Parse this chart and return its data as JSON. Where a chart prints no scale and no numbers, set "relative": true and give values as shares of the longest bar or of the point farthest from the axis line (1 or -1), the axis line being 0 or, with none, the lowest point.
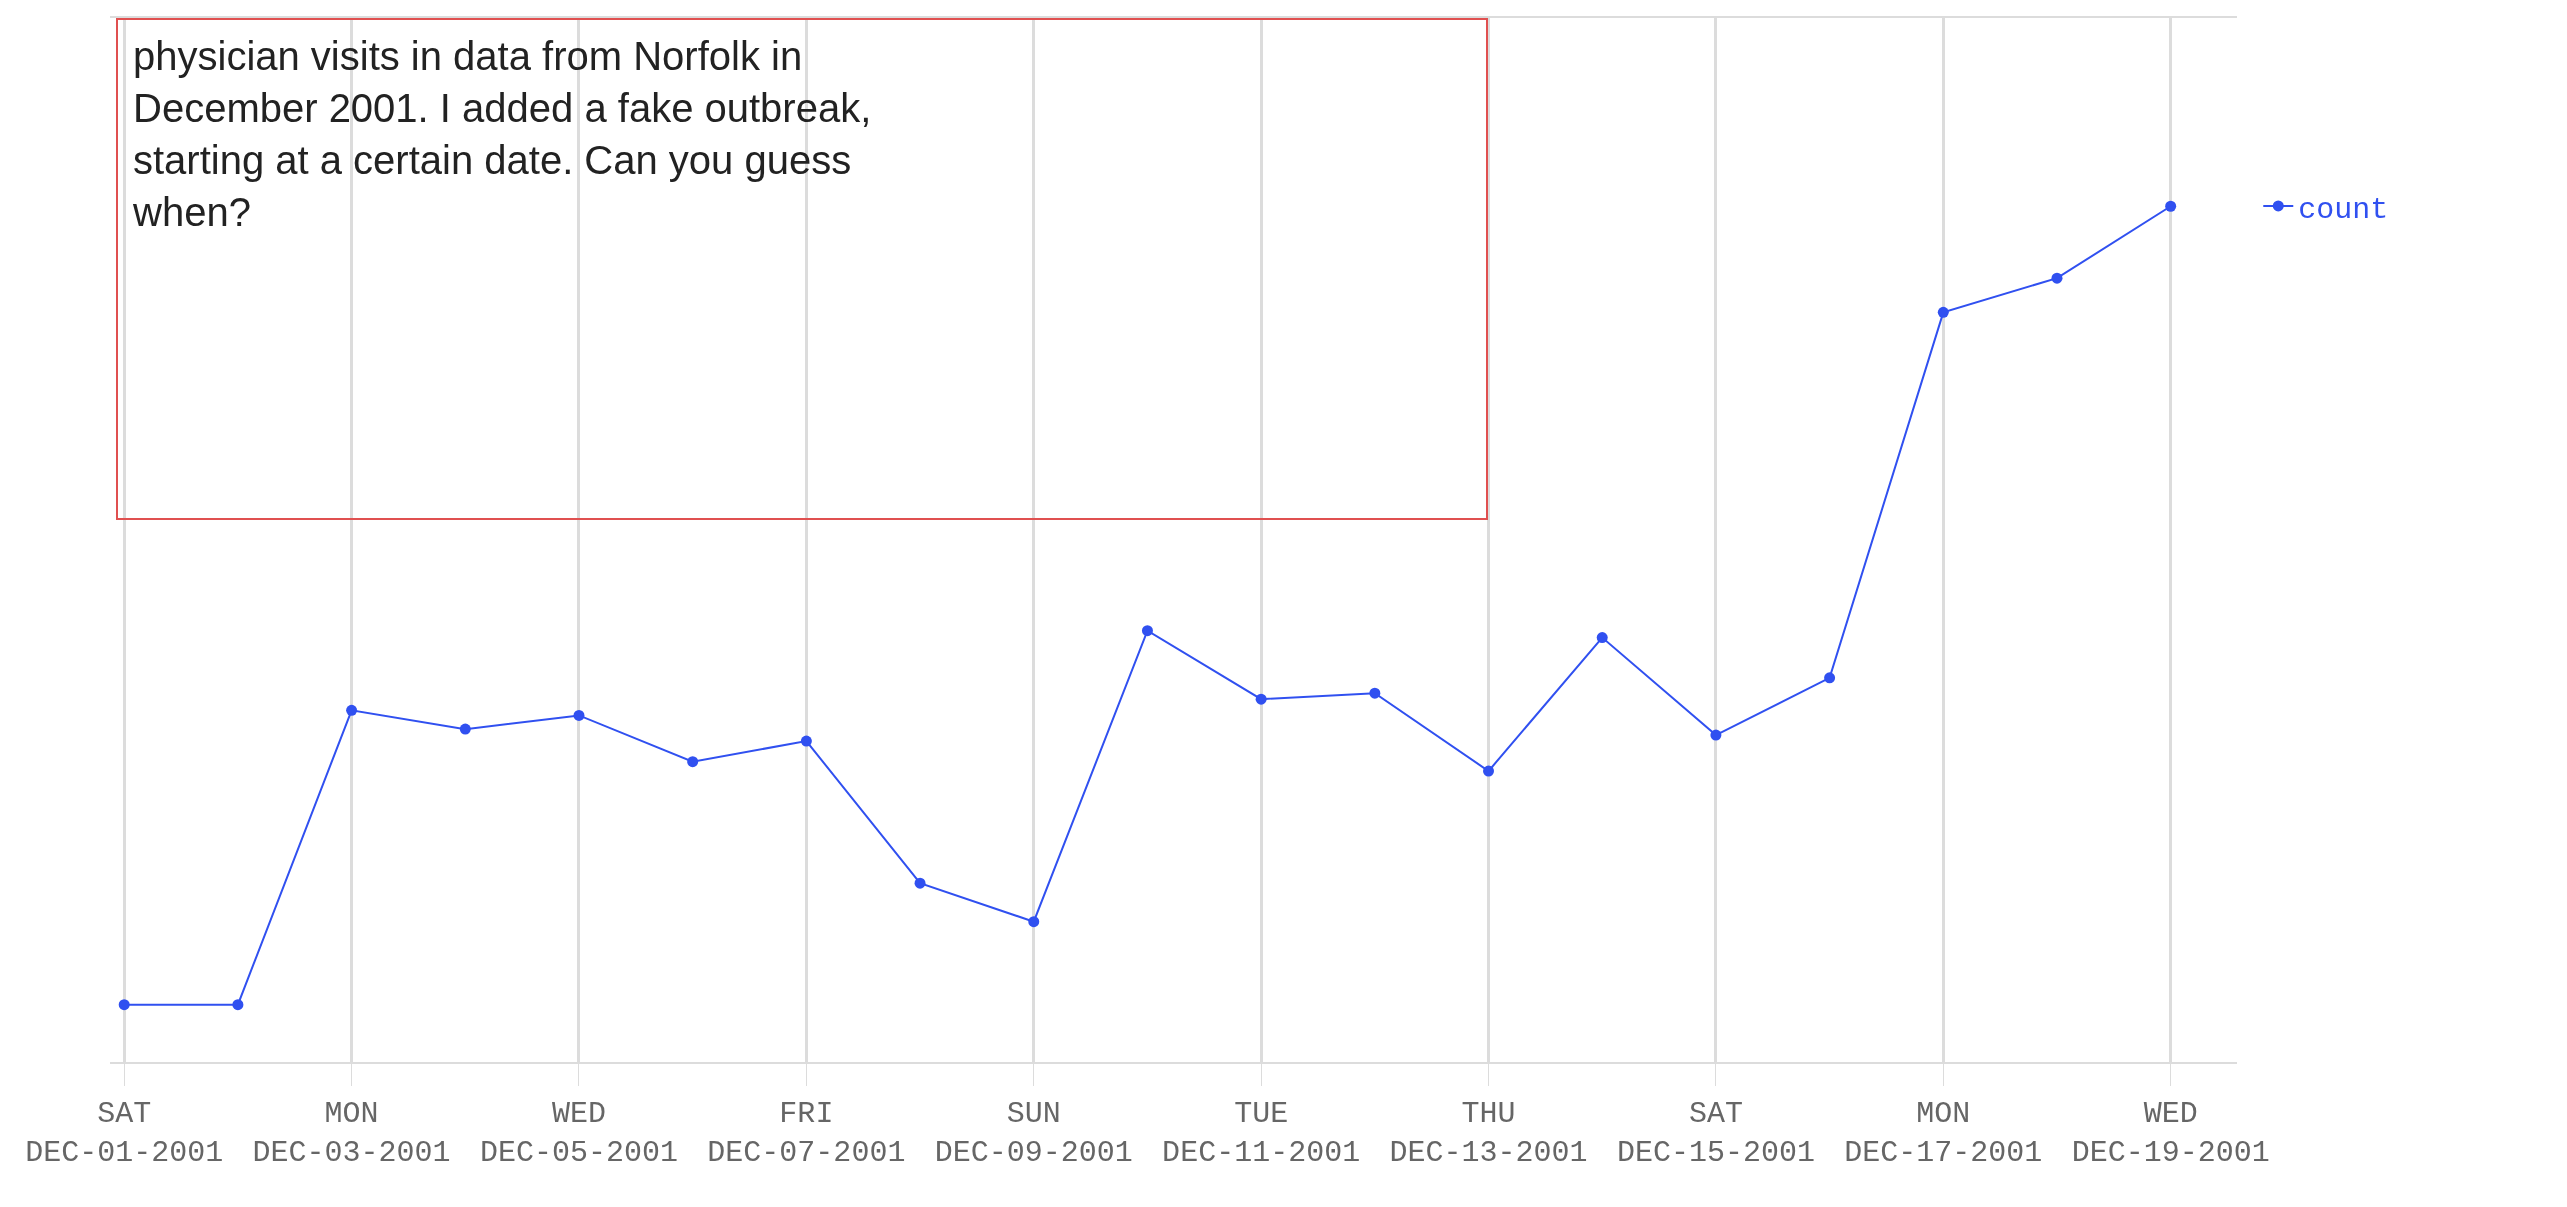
{
  "chart_data": {
    "type": "line",
    "relative": true,
    "annotations": [
      "physician visits in data from Norfolk in\nDecember 2001. I added a fake outbreak,\nstarting at a certain date. Can you guess\nwhen?"
    ],
    "x": [
      "2001-12-01",
      "2001-12-02",
      "2001-12-03",
      "2001-12-04",
      "2001-12-05",
      "2001-12-06",
      "2001-12-07",
      "2001-12-08",
      "2001-12-09",
      "2001-12-10",
      "2001-12-11",
      "2001-12-12",
      "2001-12-13",
      "2001-12-14",
      "2001-12-15",
      "2001-12-16",
      "2001-12-17",
      "2001-12-18",
      "2001-12-19"
    ],
    "xlim": [
      "2001-11-30T21:00",
      "2001-12-19T14:00"
    ],
    "xticks": [
      {
        "value": "2001-12-01",
        "label": "SAT\nDEC-01-2001"
      },
      {
        "value": "2001-12-03",
        "label": "MON\nDEC-03-2001"
      },
      {
        "value": "2001-12-05",
        "label": "WED\nDEC-05-2001"
      },
      {
        "value": "2001-12-07",
        "label": "FRI\nDEC-07-2001"
      },
      {
        "value": "2001-12-09",
        "label": "SUN\nDEC-09-2001"
      },
      {
        "value": "2001-12-11",
        "label": "TUE\nDEC-11-2001"
      },
      {
        "value": "2001-12-13",
        "label": "THU\nDEC-13-2001"
      },
      {
        "value": "2001-12-15",
        "label": "SAT\nDEC-15-2001"
      },
      {
        "value": "2001-12-17",
        "label": "MON\nDEC-17-2001"
      },
      {
        "value": "2001-12-19",
        "label": "WED\nDEC-19-2001"
      }
    ],
    "series": [
      {
        "name": "count",
        "color": "#3050f0",
        "values": [
          0.067,
          0.067,
          0.411,
          0.389,
          0.405,
          0.351,
          0.375,
          0.209,
          0.164,
          0.504,
          0.424,
          0.431,
          0.34,
          0.496,
          0.382,
          0.449,
          0.876,
          0.916,
          1
        ]
      }
    ],
    "grid": "x",
    "legend": "top right",
    "marker": "circle",
    "line_style": "solid"
  }
}
